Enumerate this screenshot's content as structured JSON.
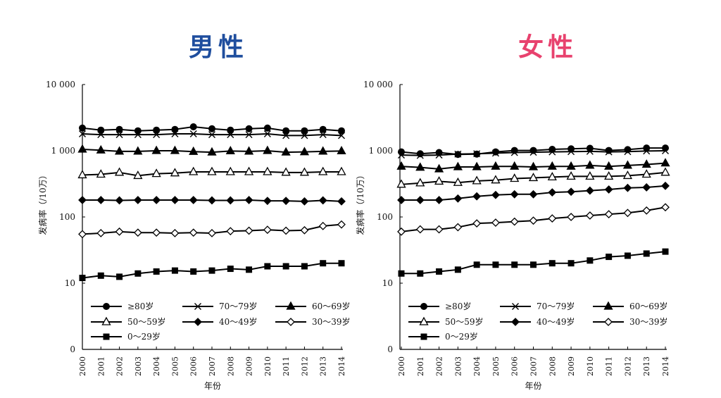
{
  "chart_data": [
    {
      "type": "line",
      "title": "男性",
      "title_color": "#1f4e9e",
      "xlabel": "年份",
      "ylabel": "发病率（/10万）",
      "yscale": "log",
      "ylim": [
        1,
        10000
      ],
      "yticks": [
        {
          "value": 1,
          "label": "0"
        },
        {
          "value": 10,
          "label": "10"
        },
        {
          "value": 100,
          "label": "100"
        },
        {
          "value": 1000,
          "label": "1 000"
        },
        {
          "value": 10000,
          "label": "10 000"
        }
      ],
      "x": [
        "2000",
        "2001",
        "2002",
        "2003",
        "2004",
        "2005",
        "2006",
        "2007",
        "2008",
        "2009",
        "2010",
        "2011",
        "2012",
        "2013",
        "2014"
      ],
      "legend_position": "bottom-inside",
      "series": [
        {
          "name": "≥80岁",
          "marker": "circle",
          "values": [
            2200,
            2050,
            2100,
            2000,
            2050,
            2100,
            2300,
            2150,
            2050,
            2150,
            2200,
            2000,
            2000,
            2100,
            2000
          ]
        },
        {
          "name": "70～79岁",
          "marker": "x",
          "values": [
            1800,
            1750,
            1750,
            1750,
            1750,
            1800,
            1800,
            1750,
            1750,
            1750,
            1800,
            1700,
            1700,
            1750,
            1700
          ]
        },
        {
          "name": "60～69岁",
          "marker": "triangle-filled",
          "values": [
            1050,
            1020,
            980,
            980,
            1000,
            1000,
            970,
            950,
            990,
            980,
            1000,
            950,
            960,
            980,
            990
          ]
        },
        {
          "name": "50～59岁",
          "marker": "triangle-open",
          "values": [
            430,
            440,
            470,
            420,
            450,
            460,
            480,
            480,
            480,
            480,
            480,
            470,
            470,
            480,
            480
          ]
        },
        {
          "name": "40～49岁",
          "marker": "diamond-filled",
          "values": [
            180,
            180,
            178,
            180,
            180,
            180,
            180,
            178,
            178,
            180,
            175,
            175,
            172,
            178,
            172
          ]
        },
        {
          "name": "30～39岁",
          "marker": "diamond-open",
          "values": [
            55,
            57,
            60,
            58,
            58,
            57,
            58,
            57,
            61,
            62,
            64,
            62,
            63,
            73,
            77
          ]
        },
        {
          "name": "0～29岁",
          "marker": "square",
          "values": [
            12,
            13,
            12.5,
            14,
            15,
            15.5,
            15,
            15.5,
            16.5,
            16,
            18,
            18,
            18,
            20,
            20
          ]
        }
      ]
    },
    {
      "type": "line",
      "title": "女性",
      "title_color": "#e8426e",
      "xlabel": "年份",
      "ylabel": "发病率（/10万）",
      "yscale": "log",
      "ylim": [
        1,
        10000
      ],
      "yticks": [
        {
          "value": 1,
          "label": "0"
        },
        {
          "value": 10,
          "label": "10"
        },
        {
          "value": 100,
          "label": "100"
        },
        {
          "value": 1000,
          "label": "1 000"
        },
        {
          "value": 10000,
          "label": "10 000"
        }
      ],
      "x": [
        "2000",
        "2001",
        "2002",
        "2003",
        "2004",
        "2005",
        "2006",
        "2007",
        "2008",
        "2009",
        "2010",
        "2011",
        "2012",
        "2013",
        "2014"
      ],
      "legend_position": "bottom-inside",
      "series": [
        {
          "name": "≥80岁",
          "marker": "circle",
          "values": [
            960,
            900,
            940,
            880,
            890,
            960,
            1010,
            1010,
            1050,
            1070,
            1090,
            1010,
            1040,
            1100,
            1100
          ]
        },
        {
          "name": "70～79岁",
          "marker": "x",
          "values": [
            860,
            850,
            860,
            890,
            900,
            920,
            940,
            950,
            960,
            970,
            980,
            960,
            970,
            990,
            1000
          ]
        },
        {
          "name": "60～69岁",
          "marker": "triangle-filled",
          "values": [
            580,
            560,
            530,
            570,
            570,
            580,
            580,
            570,
            580,
            580,
            600,
            580,
            600,
            620,
            650
          ]
        },
        {
          "name": "50～59岁",
          "marker": "triangle-open",
          "values": [
            310,
            325,
            345,
            330,
            350,
            360,
            380,
            390,
            400,
            410,
            410,
            410,
            420,
            440,
            470
          ]
        },
        {
          "name": "40～49岁",
          "marker": "diamond-filled",
          "values": [
            180,
            180,
            180,
            190,
            205,
            215,
            220,
            220,
            235,
            240,
            250,
            260,
            275,
            280,
            295
          ]
        },
        {
          "name": "30～39岁",
          "marker": "diamond-open",
          "values": [
            60,
            65,
            65,
            70,
            80,
            82,
            85,
            88,
            95,
            100,
            105,
            110,
            115,
            125,
            140
          ]
        },
        {
          "name": "0～29岁",
          "marker": "square",
          "values": [
            14,
            14,
            15,
            16,
            19,
            19,
            19,
            19,
            20,
            20,
            22,
            25,
            26,
            28,
            30
          ]
        }
      ]
    }
  ]
}
